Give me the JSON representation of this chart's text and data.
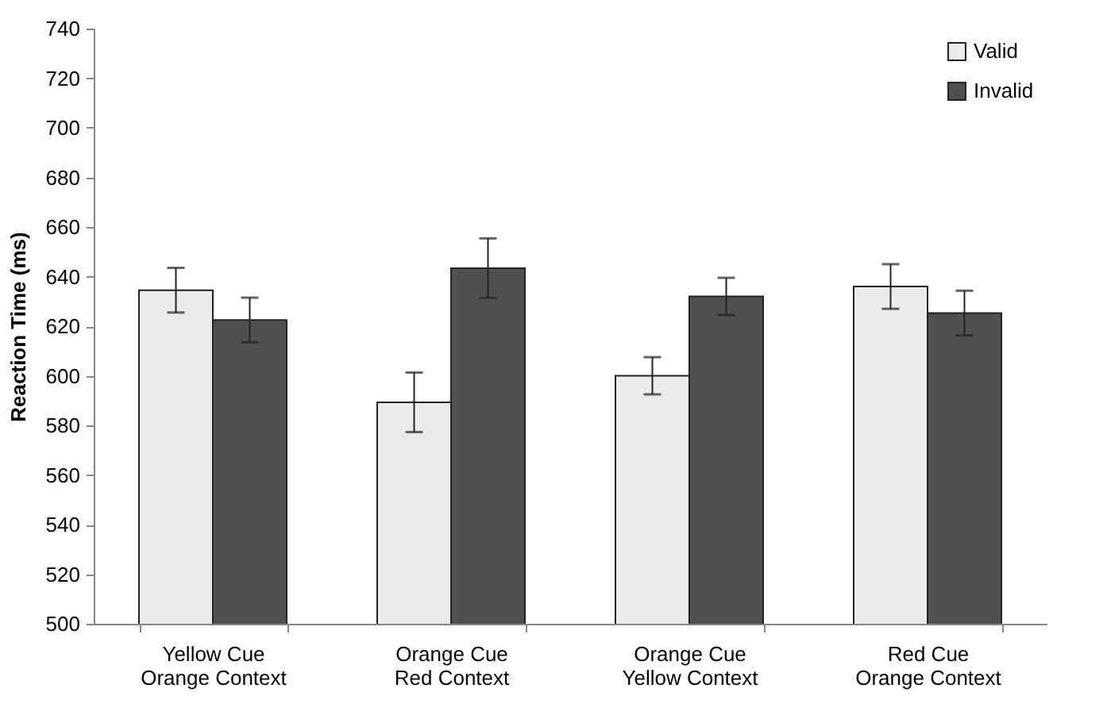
{
  "chart_data": {
    "type": "bar",
    "ylabel": "Reaction Time (ms)",
    "categories": [
      "Yellow Cue\nOrange Context",
      "Orange Cue\nRed Context",
      "Orange Cue\nYellow Context",
      "Red Cue\nOrange Context"
    ],
    "series": [
      {
        "name": "Valid",
        "color": "#ebebeb",
        "values": [
          634.5,
          589.3,
          600,
          636
        ],
        "errors": [
          9,
          12,
          7.5,
          9
        ]
      },
      {
        "name": "Invalid",
        "color": "#505050",
        "values": [
          622.5,
          643.4,
          632,
          625.3
        ],
        "errors": [
          9,
          12,
          7.5,
          9
        ]
      }
    ],
    "ylim": [
      500,
      740
    ],
    "yticks": [
      500,
      520,
      540,
      560,
      580,
      600,
      620,
      640,
      660,
      680,
      700,
      720,
      740
    ],
    "grid": false,
    "legend": "top right"
  }
}
